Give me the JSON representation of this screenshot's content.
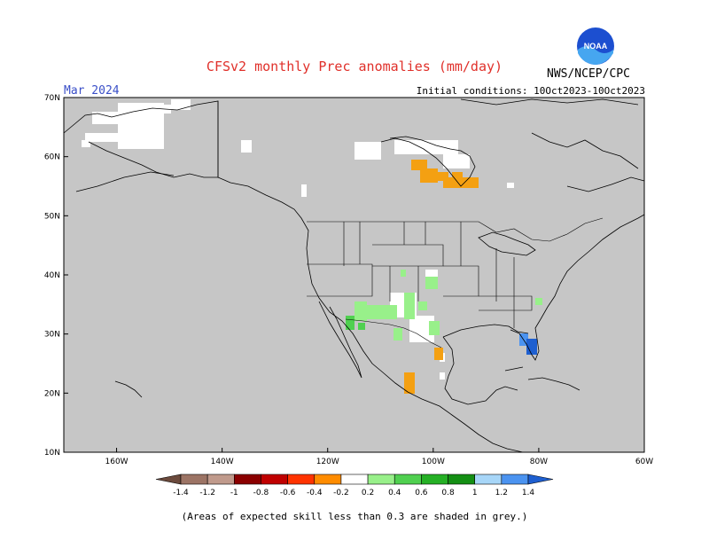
{
  "header": {
    "title": "CFSv2 monthly Prec anomalies (mm/day)",
    "valid_month": "Mar 2024",
    "initial_conditions": "Initial conditions: 10Oct2023-10Oct2023",
    "agency": "NWS/NCEP/CPC",
    "logo_text": "NOAA"
  },
  "map": {
    "lat_labels": [
      "70N",
      "60N",
      "50N",
      "40N",
      "30N",
      "20N",
      "10N"
    ],
    "lat_values": [
      70,
      60,
      50,
      40,
      30,
      20,
      10
    ],
    "lon_labels": [
      "160W",
      "140W",
      "120W",
      "100W",
      "80W",
      "60W"
    ],
    "lon_values": [
      -160,
      -140,
      -120,
      -100,
      -80,
      -60
    ],
    "lon_range": [
      -170,
      -60
    ],
    "lat_range": [
      10,
      70
    ],
    "skill_mask_color": "#c6c6c6",
    "land_line_color": "#000000"
  },
  "colorbar": {
    "labels": [
      "-1.4",
      "-1.2",
      "-1",
      "-0.8",
      "-0.6",
      "-0.4",
      "-0.2",
      "0.2",
      "0.4",
      "0.6",
      "0.8",
      "1",
      "1.2",
      "1.4"
    ],
    "colors": [
      "#6b4a3c",
      "#9c7465",
      "#c09a8c",
      "#8b0000",
      "#c00000",
      "#ff3300",
      "#ff8c00",
      "#ffffff",
      "#98f08a",
      "#50d050",
      "#25b025",
      "#148f14",
      "#a7d6f8",
      "#4b93f0",
      "#1e5fd0"
    ]
  },
  "anomaly_regions": [
    {
      "name": "canada-dry",
      "color": "#f4a012"
    },
    {
      "name": "texas-dry",
      "color": "#f4a012"
    },
    {
      "name": "mexico-dry",
      "color": "#f4a012"
    },
    {
      "name": "southwest-wet",
      "color": "#98f08a"
    },
    {
      "name": "baja-wet",
      "color": "#50d050"
    },
    {
      "name": "florida-wet-strong",
      "color": "#1e5fd0"
    },
    {
      "name": "florida-wet",
      "color": "#4b93f0"
    },
    {
      "name": "carolina-wet",
      "color": "#98f08a"
    }
  ],
  "footnote": "(Areas of expected skill less than 0.3 are shaded in grey.)"
}
